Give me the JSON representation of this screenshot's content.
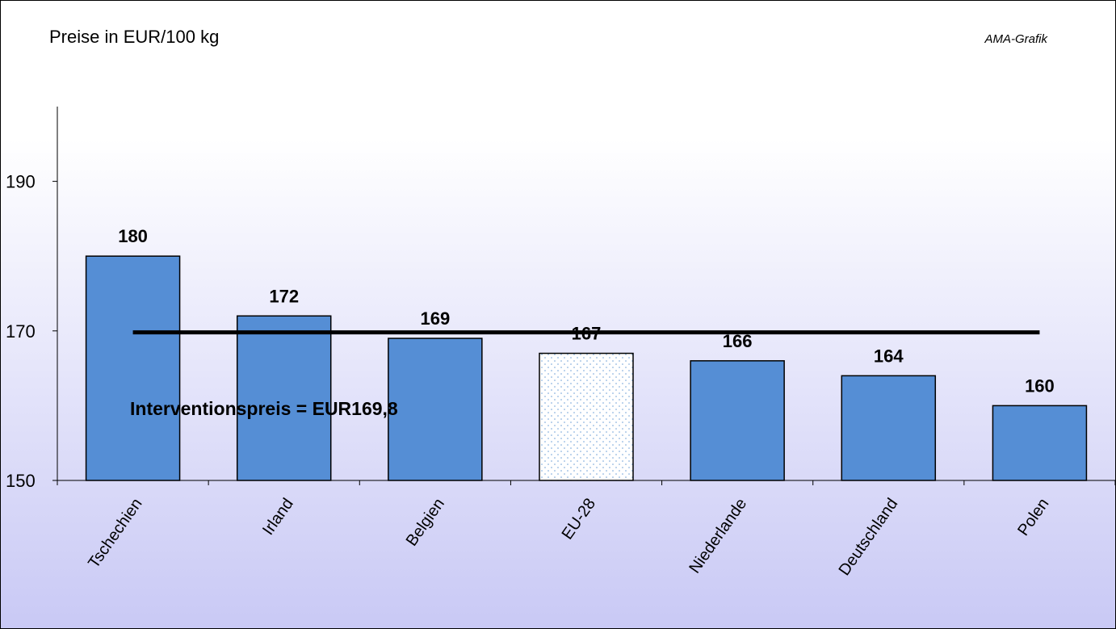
{
  "chart_data": {
    "type": "bar",
    "title": "Preise in EUR/100 kg",
    "source_label": "AMA-Grafik",
    "categories": [
      "Tschechien",
      "Irland",
      "Belgien",
      "EU-28",
      "Niederlande",
      "Deutschland",
      "Polen"
    ],
    "values": [
      180,
      172,
      169,
      167,
      166,
      164,
      160
    ],
    "value_labels": [
      "180",
      "172",
      "169",
      "167",
      "166",
      "164",
      "160"
    ],
    "highlight_category": "EU-28",
    "ylim": [
      150,
      200
    ],
    "yticks": [
      150,
      170,
      190
    ],
    "ytick_labels": [
      "150",
      "170",
      "190"
    ],
    "grid": false,
    "reference_line": {
      "value": 169.8,
      "label": "Interventionspreis = EUR169,8"
    },
    "colors": {
      "bar": "#558ed5",
      "highlight_dots": "#6fa0d8",
      "line": "#000000"
    }
  }
}
